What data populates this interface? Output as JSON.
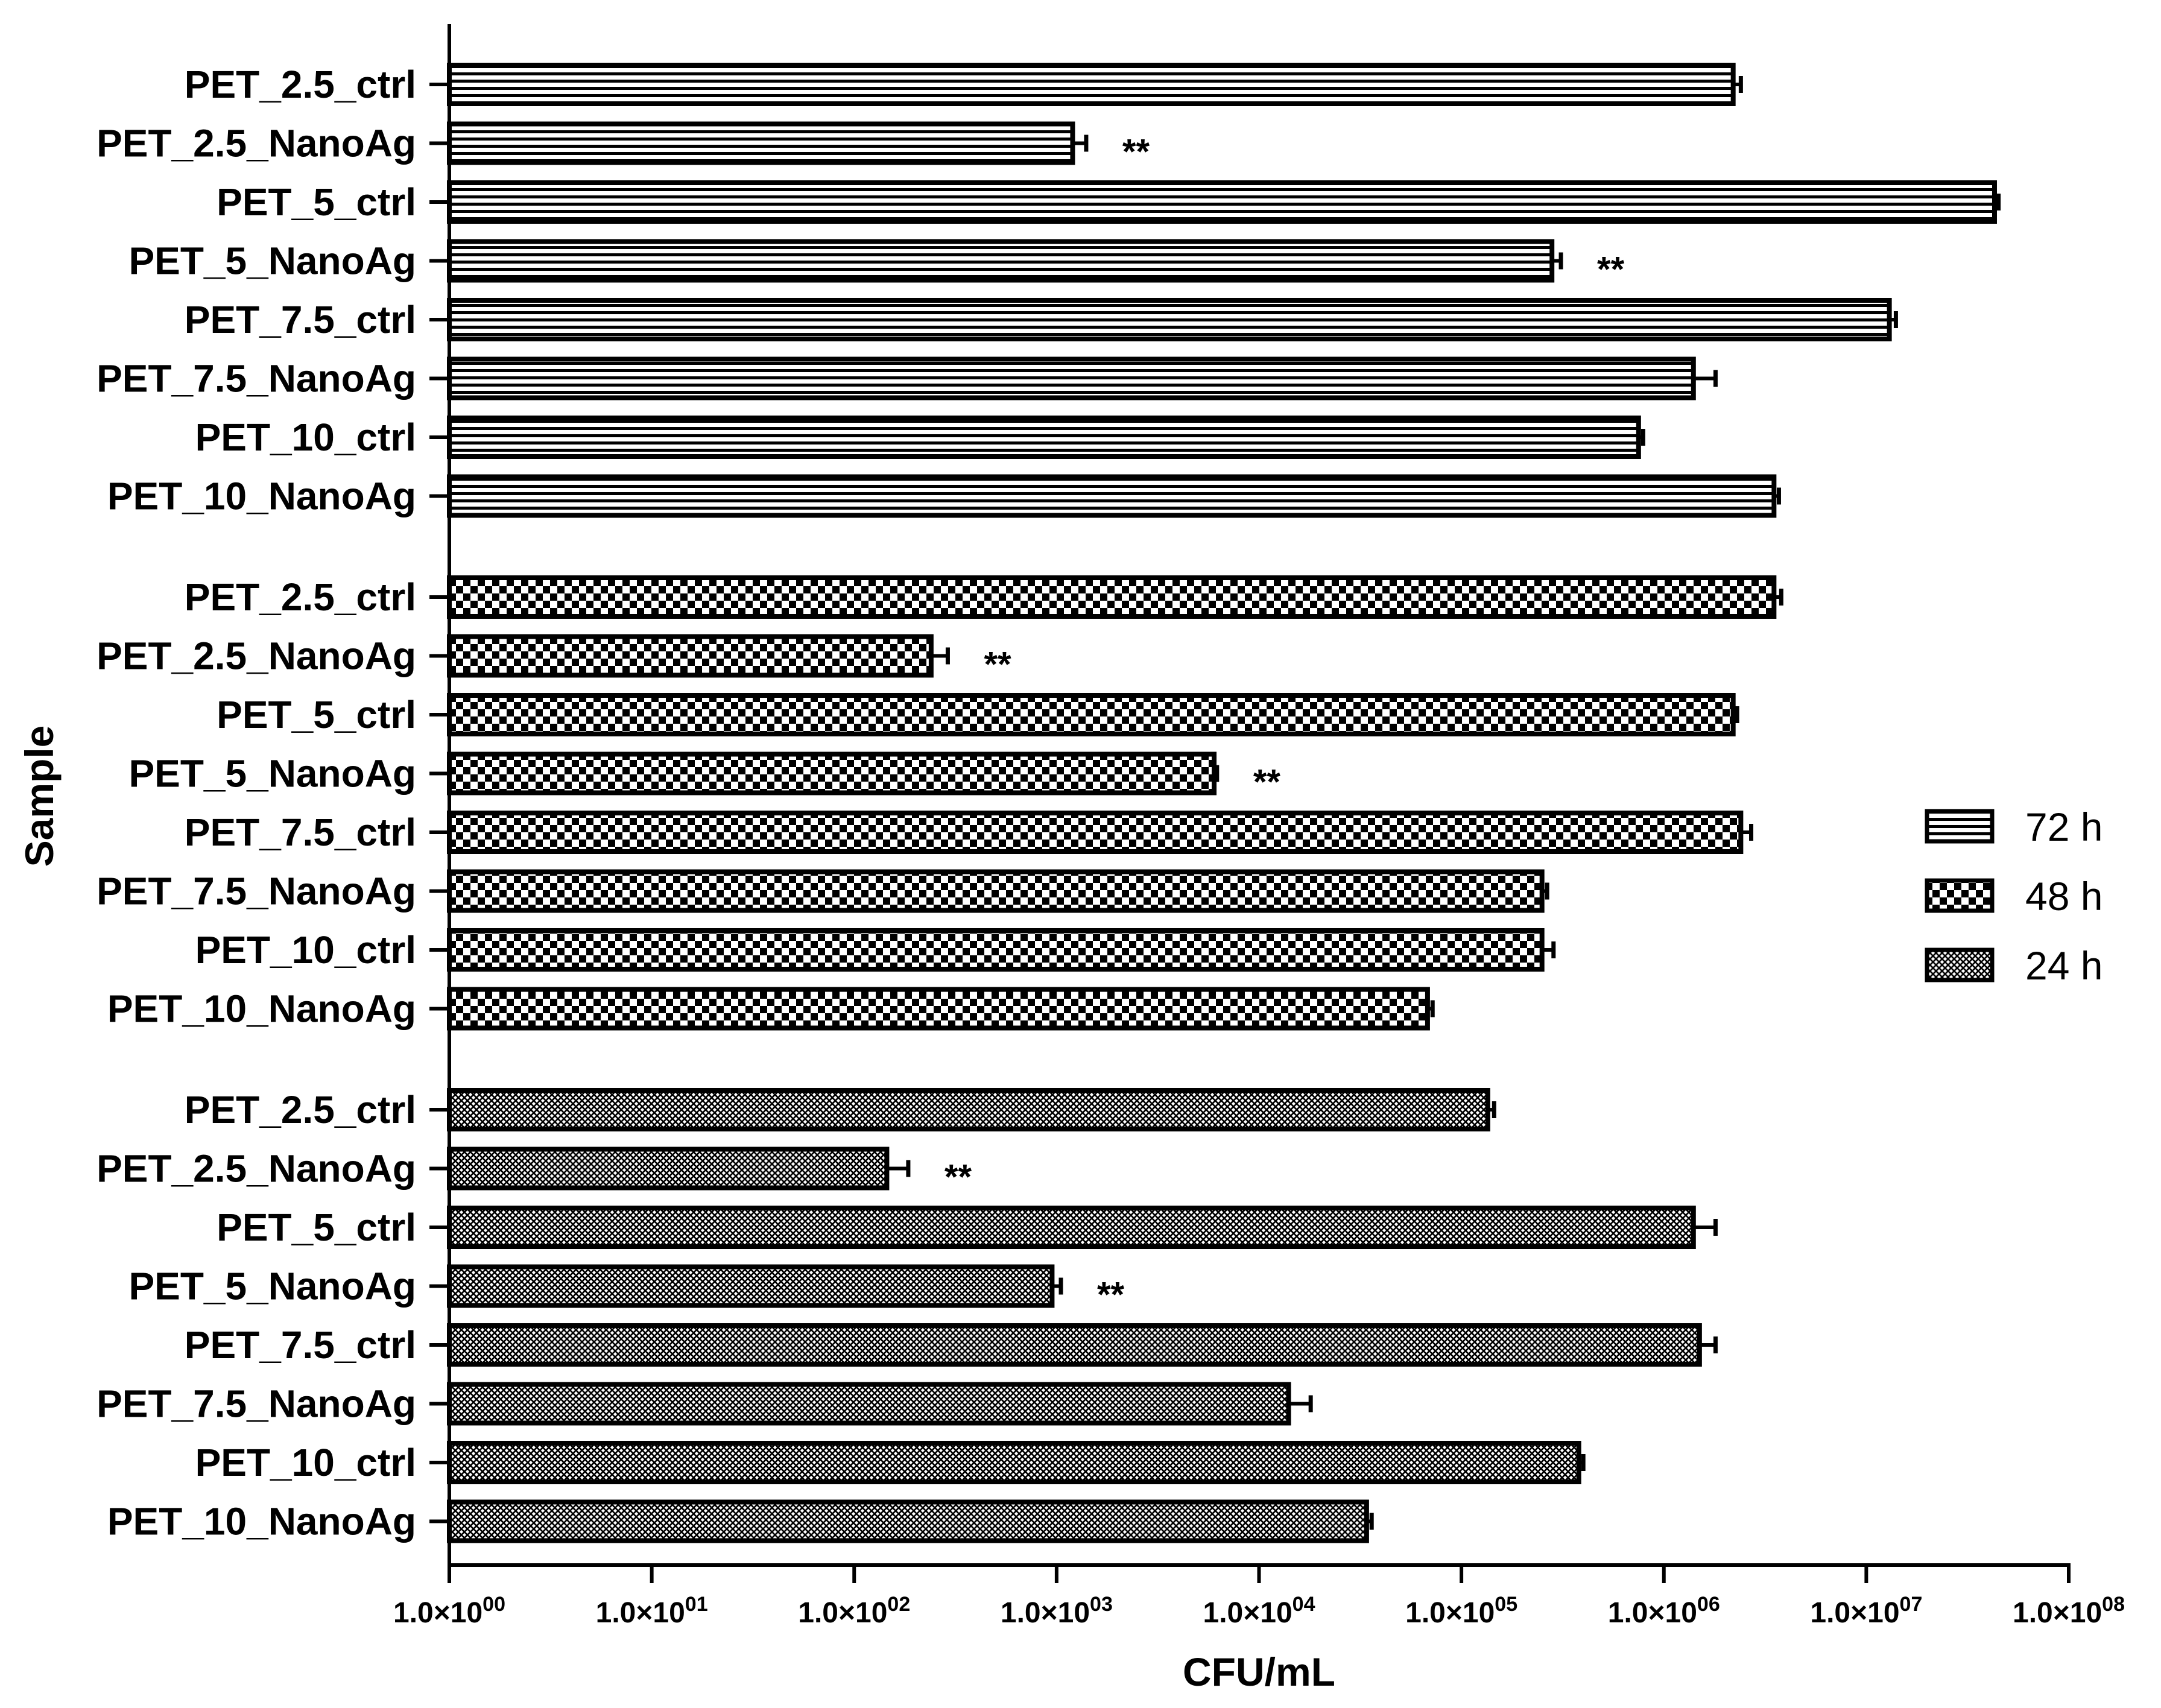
{
  "chart_data": {
    "type": "bar",
    "orientation": "horizontal",
    "xscale": "log",
    "xlim": [
      1,
      100000000
    ],
    "xlabel": "CFU/mL",
    "ylabel": "Sample",
    "legend_position": "right",
    "x_tick_labels": [
      "1.0×10",
      "1.0×10",
      "1.0×10",
      "1.0×10",
      "1.0×10",
      "1.0×10",
      "1.0×10",
      "1.0×10",
      "1.0×10"
    ],
    "x_tick_exponents": [
      "00",
      "01",
      "02",
      "03",
      "04",
      "05",
      "06",
      "07",
      "08"
    ],
    "x_tick_values": [
      1,
      10,
      100,
      1000,
      10000,
      100000,
      1000000,
      10000000,
      100000000
    ],
    "categories": [
      "PET_2.5_ctrl",
      "PET_2.5_NanoAg",
      "PET_5_ctrl",
      "PET_5_NanoAg",
      "PET_7.5_ctrl",
      "PET_7.5_NanoAg",
      "PET_10_ctrl",
      "PET_10_NanoAg"
    ],
    "series": [
      {
        "name": "72 h",
        "pattern": "horizontal-lines",
        "values": [
          2200000,
          1200,
          43000000,
          280000,
          13000000,
          1400000,
          750000,
          3500000
        ],
        "error_upper": [
          2400000,
          1400,
          45000000,
          310000,
          14000000,
          1800000,
          790000,
          3700000
        ],
        "significance": [
          "",
          "**",
          "",
          "**",
          "",
          "",
          "",
          ""
        ]
      },
      {
        "name": "48 h",
        "pattern": "checkerboard",
        "values": [
          3500000,
          240,
          2200000,
          6000,
          2400000,
          250000,
          250000,
          68000
        ],
        "error_upper": [
          3800000,
          290,
          2300000,
          6200,
          2700000,
          265000,
          285000,
          72000
        ],
        "significance": [
          "",
          "**",
          "",
          "**",
          "",
          "",
          "",
          ""
        ]
      },
      {
        "name": "24 h",
        "pattern": "fine-crosshatch",
        "values": [
          135000,
          145,
          1400000,
          950,
          1500000,
          14000,
          380000,
          34000
        ],
        "error_upper": [
          145000,
          185,
          1800000,
          1050,
          1800000,
          18000,
          400000,
          36000
        ],
        "significance": [
          "",
          "**",
          "",
          "**",
          "",
          "",
          "",
          ""
        ]
      }
    ],
    "colors": {
      "bar_stroke": "#000000",
      "bar_fill": "#ffffff",
      "text": "#000000"
    }
  }
}
